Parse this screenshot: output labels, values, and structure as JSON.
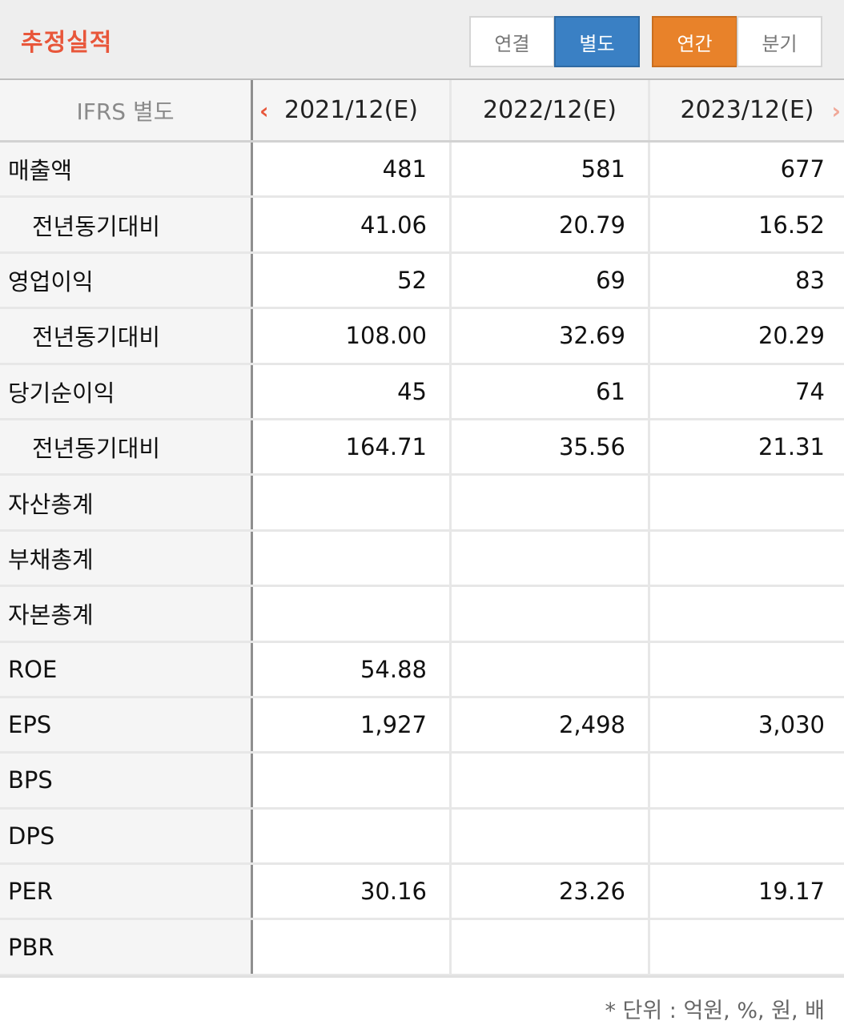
{
  "header": {
    "title": "추정실적",
    "seg1": [
      "연결",
      "별도"
    ],
    "seg2": [
      "연간",
      "분기"
    ],
    "selected_seg1": "별도",
    "selected_seg2": "연간",
    "colors": {
      "title": "#e8563a",
      "blue": "#3a80c4",
      "orange": "#e8822a"
    }
  },
  "table": {
    "corner": "IFRS 별도",
    "columns": [
      "2021/12(E)",
      "2022/12(E)",
      "2023/12(E)"
    ],
    "prev_icon": "chevron-left-icon",
    "next_icon": "chevron-right-icon",
    "rows": [
      {
        "label": "매출액",
        "sub": false,
        "values": [
          "481",
          "581",
          "677"
        ]
      },
      {
        "label": "전년동기대비",
        "sub": true,
        "values": [
          "41.06",
          "20.79",
          "16.52"
        ]
      },
      {
        "label": "영업이익",
        "sub": false,
        "values": [
          "52",
          "69",
          "83"
        ]
      },
      {
        "label": "전년동기대비",
        "sub": true,
        "values": [
          "108.00",
          "32.69",
          "20.29"
        ]
      },
      {
        "label": "당기순이익",
        "sub": false,
        "values": [
          "45",
          "61",
          "74"
        ]
      },
      {
        "label": "전년동기대비",
        "sub": true,
        "values": [
          "164.71",
          "35.56",
          "21.31"
        ]
      },
      {
        "label": "자산총계",
        "sub": false,
        "values": [
          "",
          "",
          ""
        ]
      },
      {
        "label": "부채총계",
        "sub": false,
        "values": [
          "",
          "",
          ""
        ]
      },
      {
        "label": "자본총계",
        "sub": false,
        "values": [
          "",
          "",
          ""
        ]
      },
      {
        "label": "ROE",
        "sub": false,
        "values": [
          "54.88",
          "",
          ""
        ]
      },
      {
        "label": "EPS",
        "sub": false,
        "values": [
          "1,927",
          "2,498",
          "3,030"
        ]
      },
      {
        "label": "BPS",
        "sub": false,
        "values": [
          "",
          "",
          ""
        ]
      },
      {
        "label": "DPS",
        "sub": false,
        "values": [
          "",
          "",
          ""
        ]
      },
      {
        "label": "PER",
        "sub": false,
        "values": [
          "30.16",
          "23.26",
          "19.17"
        ]
      },
      {
        "label": "PBR",
        "sub": false,
        "values": [
          "",
          "",
          ""
        ]
      }
    ]
  },
  "footer": {
    "unit_note": "* 단위 : 억원, %, 원, 배"
  }
}
